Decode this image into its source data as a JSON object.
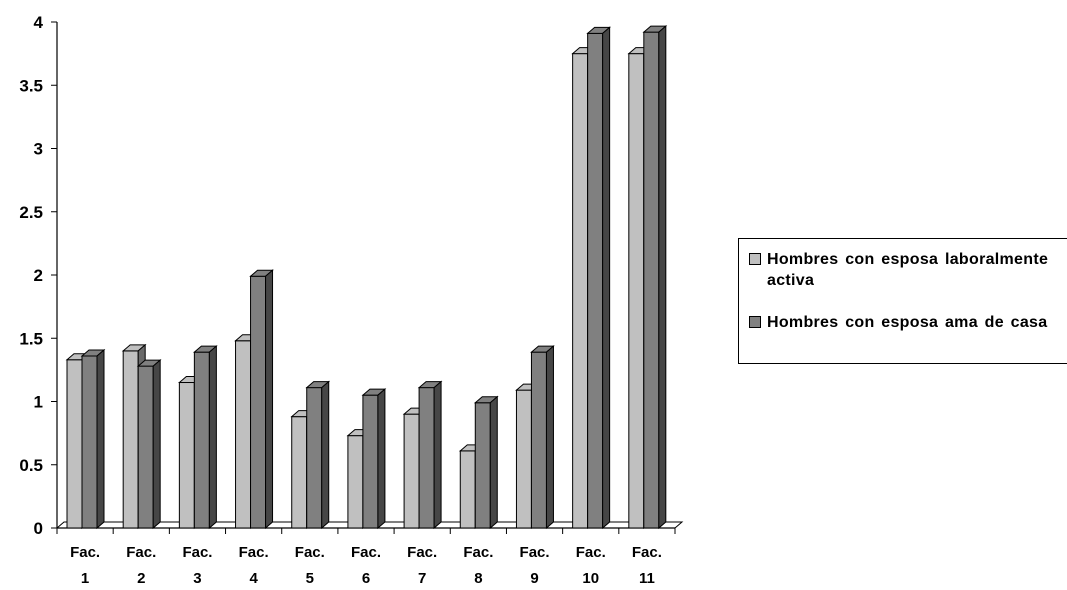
{
  "chart_data": {
    "type": "bar",
    "categories": [
      "Fac. 1",
      "Fac. 2",
      "Fac. 3",
      "Fac. 4",
      "Fac. 5",
      "Fac. 6",
      "Fac. 7",
      "Fac. 8",
      "Fac. 9",
      "Fac. 10",
      "Fac. 11"
    ],
    "category_lines": [
      [
        "Fac.",
        "1"
      ],
      [
        "Fac.",
        "2"
      ],
      [
        "Fac.",
        "3"
      ],
      [
        "Fac.",
        "4"
      ],
      [
        "Fac.",
        "5"
      ],
      [
        "Fac.",
        "6"
      ],
      [
        "Fac.",
        "7"
      ],
      [
        "Fac.",
        "8"
      ],
      [
        "Fac.",
        "9"
      ],
      [
        "Fac.",
        "10"
      ],
      [
        "Fac.",
        "11"
      ]
    ],
    "series": [
      {
        "name": "Hombres con esposa laboralmente activa",
        "values": [
          1.33,
          1.4,
          1.15,
          1.48,
          0.88,
          0.73,
          0.9,
          0.61,
          1.09,
          3.75,
          3.75
        ],
        "color": "#c0c0c0"
      },
      {
        "name": "Hombres con esposa ama de casa",
        "values": [
          1.36,
          1.28,
          1.39,
          1.99,
          1.11,
          1.05,
          1.11,
          0.99,
          1.39,
          3.91,
          3.92
        ],
        "color": "#808080"
      }
    ],
    "ylim": [
      0,
      4
    ],
    "yticks": [
      "0",
      "0.5",
      "1",
      "1.5",
      "2",
      "2.5",
      "3",
      "3.5",
      "4"
    ],
    "title": "",
    "xlabel": "",
    "ylabel": "",
    "grid": false,
    "legend_position": "right",
    "style": "3d-bar"
  },
  "legend": {
    "item1": "Hombres con esposa laboralmente activa",
    "item2": "Hombres con esposa ama de casa"
  }
}
